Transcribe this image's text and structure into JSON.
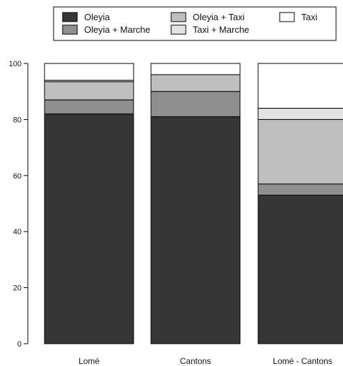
{
  "chart_data": {
    "type": "bar",
    "stacked": true,
    "title": "",
    "xlabel": "",
    "ylabel": "",
    "ylim": [
      0,
      100
    ],
    "yticks": [
      0,
      20,
      40,
      60,
      80,
      100
    ],
    "grid": false,
    "legend_position": "top",
    "categories": [
      "Lomé",
      "Cantons",
      "Lomé - Cantons"
    ],
    "series": [
      {
        "name": "Oleyia",
        "color": "#363636",
        "values": [
          82,
          81,
          53
        ]
      },
      {
        "name": "Oleyia + Marche",
        "color": "#8f8f8f",
        "values": [
          5,
          9,
          4
        ]
      },
      {
        "name": "Oleyia + Taxi",
        "color": "#bfbfbf",
        "values": [
          6.5,
          6,
          23
        ]
      },
      {
        "name": "Taxi + Marche",
        "color": "#e3e3e3",
        "values": [
          0.5,
          0,
          4
        ]
      },
      {
        "name": "Taxi",
        "color": "#ffffff",
        "values": [
          6,
          4,
          16
        ]
      }
    ]
  }
}
